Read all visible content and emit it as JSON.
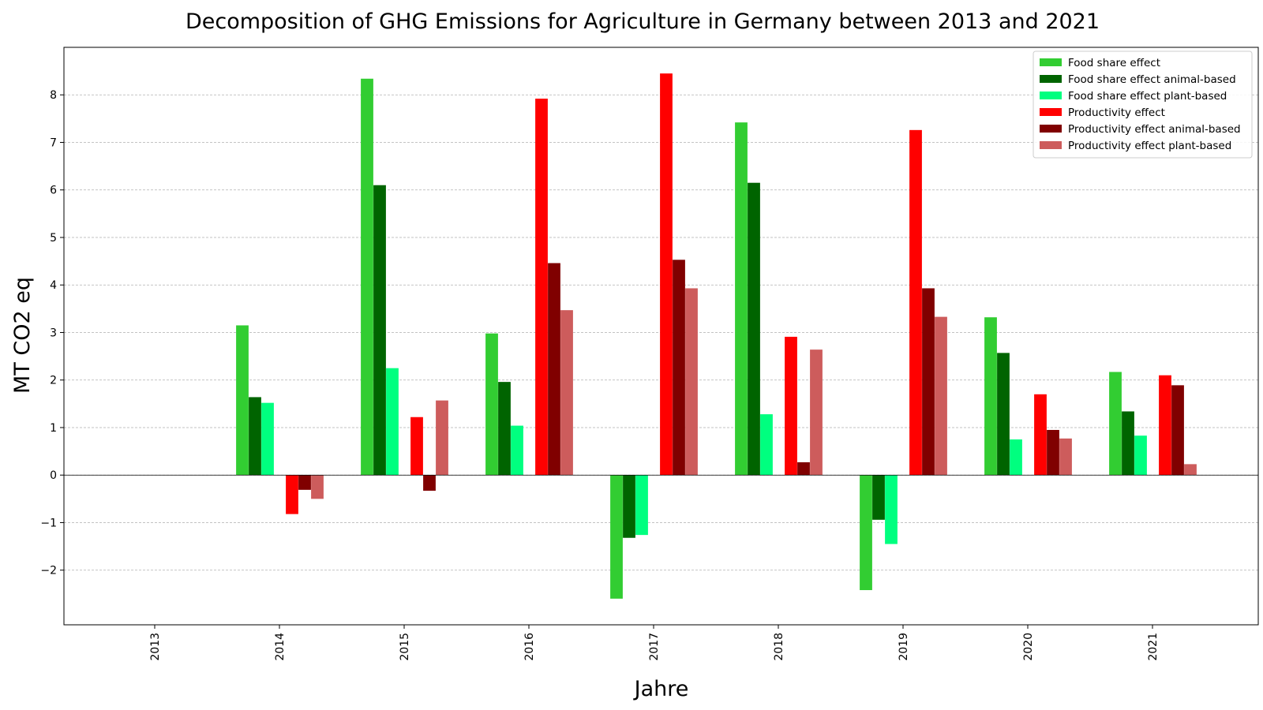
{
  "chart_data": {
    "type": "bar",
    "title": "Decomposition of GHG Emissions for Agriculture in Germany between 2013 and 2021",
    "xlabel": "Jahre",
    "ylabel": "MT CO2 eq",
    "categories": [
      "2013",
      "2014",
      "2015",
      "2016",
      "2017",
      "2018",
      "2019",
      "2020",
      "2021"
    ],
    "ylim": [
      -3.15,
      9.0
    ],
    "yticks": [
      -2,
      -1,
      0,
      1,
      2,
      3,
      4,
      5,
      6,
      7,
      8
    ],
    "grid": "horizontal dashed",
    "legend_position": "top-right",
    "series": [
      {
        "name": "Food share effect",
        "color": "#32cd32",
        "values": [
          null,
          3.15,
          8.34,
          2.98,
          -2.6,
          7.42,
          -2.42,
          3.32,
          2.17
        ]
      },
      {
        "name": "Food share effect animal-based",
        "color": "#006400",
        "values": [
          null,
          1.64,
          6.1,
          1.96,
          -1.32,
          6.15,
          -0.94,
          2.57,
          1.34
        ]
      },
      {
        "name": "Food share effect plant-based",
        "color": "#00ff7f",
        "values": [
          null,
          1.52,
          2.25,
          1.04,
          -1.26,
          1.28,
          -1.45,
          0.75,
          0.83
        ]
      },
      {
        "name": "Productivity effect",
        "color": "#ff0000",
        "values": [
          null,
          -0.82,
          1.22,
          7.92,
          8.45,
          2.91,
          7.26,
          1.7,
          2.1
        ]
      },
      {
        "name": "Productivity effect animal-based",
        "color": "#800000",
        "values": [
          null,
          -0.31,
          -0.33,
          4.46,
          4.53,
          0.27,
          3.93,
          0.95,
          1.89
        ]
      },
      {
        "name": "Productivity effect plant-based",
        "color": "#cd5c5c",
        "values": [
          null,
          -0.5,
          1.57,
          3.47,
          3.93,
          2.64,
          3.33,
          0.77,
          0.23
        ]
      }
    ]
  }
}
